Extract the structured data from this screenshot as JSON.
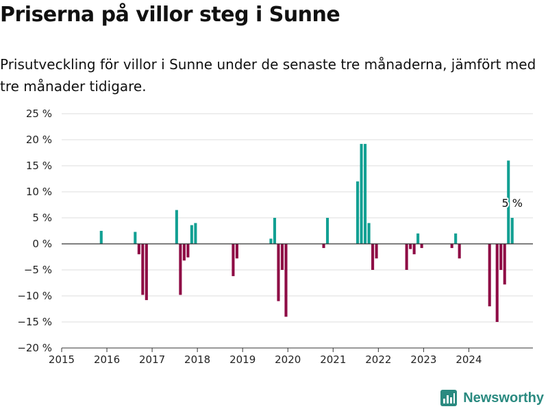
{
  "title": "Priserna på villor steg i Sunne",
  "subtitle": "Prisutveckling för villor i Sunne under de senaste tre månaderna, jämfört med tre månader tidigare.",
  "brand": {
    "name": "Newsworthy",
    "icon": "newsworthy-logo-icon"
  },
  "colors": {
    "positive": "#12a093",
    "negative": "#8e0b45",
    "grid": "#dcdcdc",
    "zero_line": "#333333"
  },
  "chart_data": {
    "type": "bar",
    "x_unit": "month",
    "xlim": [
      "2015-01",
      "2025-06"
    ],
    "x_ticks": [
      "2015",
      "2016",
      "2017",
      "2018",
      "2019",
      "2020",
      "2021",
      "2022",
      "2023",
      "2024"
    ],
    "ylim": [
      -20,
      25
    ],
    "y_ticks": [
      -20,
      -15,
      -10,
      -5,
      0,
      5,
      10,
      15,
      20,
      25
    ],
    "y_tick_suffix": " %",
    "grid": true,
    "annotation": {
      "x": "2024-12",
      "text": "5 %"
    },
    "points": [
      {
        "x": "2015-11",
        "y": 2.5
      },
      {
        "x": "2016-08",
        "y": 2.3
      },
      {
        "x": "2016-09",
        "y": -2.0
      },
      {
        "x": "2016-10",
        "y": -9.8
      },
      {
        "x": "2016-11",
        "y": -10.8
      },
      {
        "x": "2017-07",
        "y": 6.5
      },
      {
        "x": "2017-08",
        "y": -9.8
      },
      {
        "x": "2017-09",
        "y": -3.2
      },
      {
        "x": "2017-10",
        "y": -2.6
      },
      {
        "x": "2017-11",
        "y": 3.6
      },
      {
        "x": "2017-12",
        "y": 4.0
      },
      {
        "x": "2018-10",
        "y": -6.2
      },
      {
        "x": "2018-11",
        "y": -2.8
      },
      {
        "x": "2019-08",
        "y": 1.0
      },
      {
        "x": "2019-09",
        "y": 5.0
      },
      {
        "x": "2019-10",
        "y": -11.0
      },
      {
        "x": "2019-11",
        "y": -5.0
      },
      {
        "x": "2019-12",
        "y": -14.0
      },
      {
        "x": "2020-10",
        "y": -0.8
      },
      {
        "x": "2020-11",
        "y": 5.0
      },
      {
        "x": "2021-07",
        "y": 12.0
      },
      {
        "x": "2021-08",
        "y": 19.2
      },
      {
        "x": "2021-09",
        "y": 19.2
      },
      {
        "x": "2021-10",
        "y": 4.0
      },
      {
        "x": "2021-11",
        "y": -5.0
      },
      {
        "x": "2021-12",
        "y": -2.8
      },
      {
        "x": "2022-08",
        "y": -5.0
      },
      {
        "x": "2022-09",
        "y": -1.0
      },
      {
        "x": "2022-10",
        "y": -2.0
      },
      {
        "x": "2022-11",
        "y": 2.0
      },
      {
        "x": "2022-12",
        "y": -0.8
      },
      {
        "x": "2023-08",
        "y": -0.8
      },
      {
        "x": "2023-09",
        "y": 2.0
      },
      {
        "x": "2023-10",
        "y": -2.8
      },
      {
        "x": "2024-06",
        "y": -12.0
      },
      {
        "x": "2024-08",
        "y": -15.0
      },
      {
        "x": "2024-09",
        "y": -5.0
      },
      {
        "x": "2024-10",
        "y": -7.8
      },
      {
        "x": "2024-11",
        "y": 16.0
      },
      {
        "x": "2024-12",
        "y": 5.0
      }
    ]
  }
}
